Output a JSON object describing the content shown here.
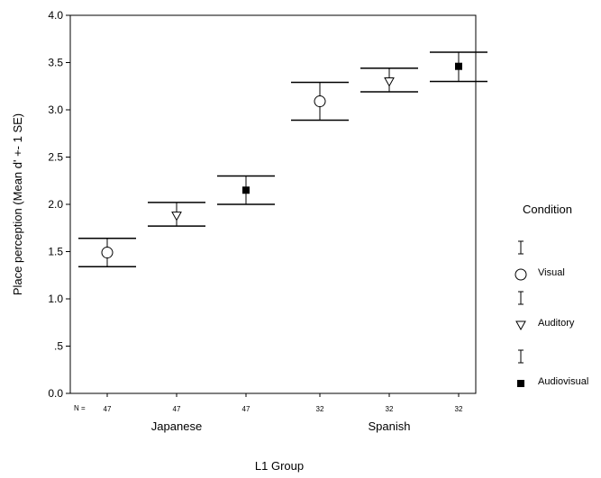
{
  "chart_data": {
    "type": "scatter",
    "title": "",
    "xlabel": "L1 Group",
    "ylabel": "Place perception (Mean d' +- 1 SE)",
    "ylim": [
      0,
      4
    ],
    "yticks": [
      "0.0",
      ".5",
      "1.0",
      "1.5",
      "2.0",
      "2.5",
      "3.0",
      "3.5",
      "4.0"
    ],
    "ytick_values": [
      0,
      0.5,
      1.0,
      1.5,
      2.0,
      2.5,
      3.0,
      3.5,
      4.0
    ],
    "grid": false,
    "categories": [
      "Japanese",
      "Spanish"
    ],
    "n_label": "N =",
    "legend": {
      "title": "Condition",
      "placement": "right",
      "entries": [
        "Visual",
        "Auditory",
        "Audiovisual"
      ]
    },
    "series": [
      {
        "name": "Visual",
        "marker": "open-circle",
        "n": [
          "47",
          "32"
        ],
        "mean": [
          1.49,
          3.09
        ],
        "lower": [
          1.34,
          2.89
        ],
        "upper": [
          1.64,
          3.29
        ]
      },
      {
        "name": "Auditory",
        "marker": "open-triangle-down",
        "n": [
          "47",
          "32"
        ],
        "mean": [
          1.88,
          3.3
        ],
        "lower": [
          1.77,
          3.19
        ],
        "upper": [
          2.02,
          3.44
        ]
      },
      {
        "name": "Audiovisual",
        "marker": "filled-square",
        "n": [
          "47",
          "32"
        ],
        "mean": [
          2.15,
          3.46
        ],
        "lower": [
          2.0,
          3.3
        ],
        "upper": [
          2.3,
          3.61
        ]
      }
    ]
  }
}
